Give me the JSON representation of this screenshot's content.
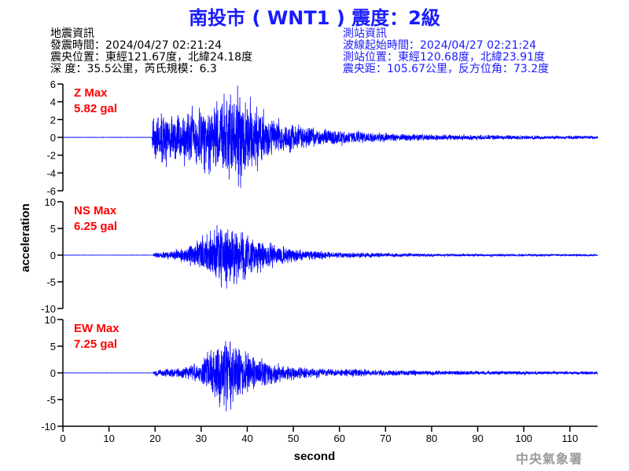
{
  "header": {
    "title": "南投市 ( WNT1 ) 震度：2級"
  },
  "event_info": {
    "heading": "地震資訊",
    "origin_time": "發震時間：2024/04/27 02:21:24",
    "epicenter": "震央位置：東經121.67度，北緯24.18度",
    "depth_magnitude": "深   度：35.5公里，芮氏規模：6.3"
  },
  "station_info": {
    "heading": "測站資訊",
    "wave_onset": "波線起始時間：2024/04/27 02:21:24",
    "location": "測站位置：東經120.68度，北緯23.91度",
    "distance": "震央距：105.67公里，反方位角：73.2度"
  },
  "watermark": "中央氣象署",
  "colors": {
    "title": "#1a1aff",
    "station_text": "#1a1aff",
    "trace": "#0000ff",
    "max_label": "#ff0000",
    "axis": "#000000"
  },
  "chart_data": [
    {
      "type": "line",
      "component": "Z",
      "max_label": "Z Max",
      "max_value": "5.82 gal",
      "ylim": [
        -6,
        6
      ],
      "yticks": [
        -6,
        -4,
        -2,
        0,
        2,
        4,
        6
      ],
      "xlim": [
        0,
        116
      ],
      "peak": 5.82,
      "envelope": [
        [
          0,
          0.01
        ],
        [
          19.3,
          0.01
        ],
        [
          19.6,
          1.4
        ],
        [
          22,
          1.5
        ],
        [
          25,
          1.4
        ],
        [
          29,
          1.7
        ],
        [
          33,
          2.1
        ],
        [
          36,
          2.7
        ],
        [
          38,
          2.9
        ],
        [
          41,
          2.1
        ],
        [
          44,
          1.4
        ],
        [
          48,
          0.9
        ],
        [
          55,
          0.55
        ],
        [
          65,
          0.35
        ],
        [
          68,
          0.28
        ],
        [
          80,
          0.18
        ],
        [
          100,
          0.12
        ],
        [
          116,
          0.1
        ]
      ]
    },
    {
      "type": "line",
      "component": "NS",
      "max_label": "NS Max",
      "max_value": "6.25 gal",
      "ylim": [
        -10,
        10
      ],
      "yticks": [
        -10,
        -5,
        0,
        5,
        10
      ],
      "xlim": [
        0,
        116
      ],
      "peak": 6.25,
      "envelope": [
        [
          0,
          0.01
        ],
        [
          19.5,
          0.01
        ],
        [
          20,
          0.25
        ],
        [
          24,
          0.4
        ],
        [
          28,
          0.9
        ],
        [
          31,
          1.8
        ],
        [
          34,
          2.8
        ],
        [
          36,
          3.0
        ],
        [
          39,
          2.2
        ],
        [
          42,
          1.5
        ],
        [
          46,
          0.9
        ],
        [
          52,
          0.5
        ],
        [
          60,
          0.25
        ],
        [
          80,
          0.12
        ],
        [
          116,
          0.08
        ]
      ]
    },
    {
      "type": "line",
      "component": "EW",
      "max_label": "EW Max",
      "max_value": "7.25 gal",
      "ylim": [
        -10,
        10
      ],
      "yticks": [
        -10,
        -5,
        0,
        5,
        10
      ],
      "xlim": [
        0,
        116
      ],
      "peak": 7.25,
      "envelope": [
        [
          0,
          0.01
        ],
        [
          19.5,
          0.01
        ],
        [
          20,
          0.35
        ],
        [
          25,
          0.45
        ],
        [
          29,
          0.8
        ],
        [
          32,
          1.8
        ],
        [
          34,
          3.2
        ],
        [
          35.5,
          3.4
        ],
        [
          38,
          2.4
        ],
        [
          41,
          1.6
        ],
        [
          45,
          1.0
        ],
        [
          50,
          0.6
        ],
        [
          60,
          0.35
        ],
        [
          80,
          0.2
        ],
        [
          116,
          0.14
        ]
      ]
    }
  ],
  "x_axis": {
    "label": "second",
    "ticks": [
      0,
      10,
      20,
      30,
      40,
      50,
      60,
      70,
      80,
      90,
      100,
      110
    ]
  },
  "y_axis": {
    "label": "acceleration"
  }
}
